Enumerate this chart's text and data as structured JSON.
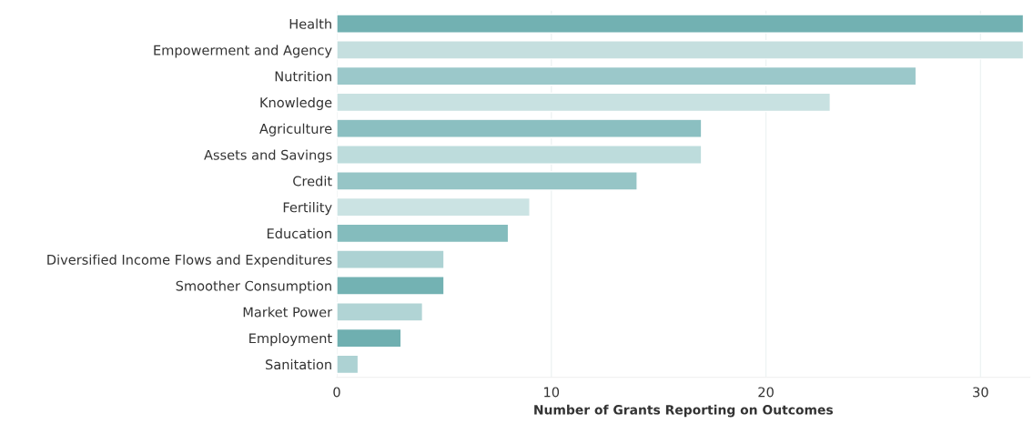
{
  "chart_data": {
    "type": "bar",
    "orientation": "horizontal",
    "categories": [
      "Health",
      "Empowerment and Agency",
      "Nutrition",
      "Knowledge",
      "Agriculture",
      "Assets and Savings",
      "Credit",
      "Fertility",
      "Education",
      "Diversified Income Flows and Expenditures",
      "Smoother Consumption",
      "Market Power",
      "Employment",
      "Sanitation"
    ],
    "values": [
      32,
      32,
      27,
      23,
      17,
      17,
      14,
      9,
      8,
      5,
      5,
      4,
      3,
      1
    ],
    "colors": [
      "#72b1b2",
      "#c5dfdf",
      "#9bc8ca",
      "#c8e1e1",
      "#8bbfc1",
      "#bddcdc",
      "#96c5c6",
      "#cbe3e3",
      "#84bcbd",
      "#add2d3",
      "#73b2b3",
      "#b1d4d5",
      "#6fafb0",
      "#add2d3"
    ],
    "xlim": [
      0,
      32.3
    ],
    "xticks": [
      0,
      10,
      20,
      30
    ],
    "xlabel": "Number of Grants Reporting on Outcomes",
    "grid": "x"
  }
}
